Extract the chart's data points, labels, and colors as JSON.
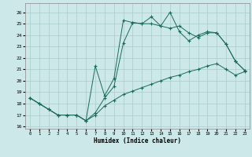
{
  "xlabel": "Humidex (Indice chaleur)",
  "bg_color": "#cce8e8",
  "line_color": "#1a6b5a",
  "grid_color": "#aacccc",
  "xlim": [
    -0.5,
    23.5
  ],
  "ylim": [
    15.8,
    26.8
  ],
  "xticks": [
    0,
    1,
    2,
    3,
    4,
    5,
    6,
    7,
    8,
    9,
    10,
    11,
    12,
    13,
    14,
    15,
    16,
    17,
    18,
    19,
    20,
    21,
    22,
    23
  ],
  "yticks": [
    16,
    17,
    18,
    19,
    20,
    21,
    22,
    23,
    24,
    25,
    26
  ],
  "line1_x": [
    0,
    1,
    2,
    3,
    4,
    5,
    6,
    7,
    8,
    9,
    10,
    11,
    12,
    13,
    14,
    15,
    16,
    17,
    18,
    19,
    20,
    21,
    22,
    23
  ],
  "line1_y": [
    18.5,
    18.0,
    17.5,
    17.0,
    17.0,
    17.0,
    16.5,
    17.0,
    17.8,
    18.3,
    18.8,
    19.1,
    19.4,
    19.7,
    20.0,
    20.3,
    20.5,
    20.8,
    21.0,
    21.3,
    21.5,
    21.0,
    20.5,
    20.8
  ],
  "line2_x": [
    0,
    1,
    2,
    3,
    4,
    5,
    6,
    7,
    8,
    9,
    10,
    11,
    12,
    13,
    14,
    15,
    16,
    17,
    18,
    19,
    20,
    21,
    22,
    23
  ],
  "line2_y": [
    18.5,
    18.0,
    17.5,
    17.0,
    17.0,
    17.0,
    16.5,
    17.2,
    18.5,
    19.5,
    23.3,
    25.1,
    25.0,
    25.0,
    24.8,
    24.6,
    24.8,
    24.2,
    23.8,
    24.2,
    24.2,
    23.2,
    21.7,
    20.9
  ],
  "line3_x": [
    0,
    1,
    2,
    3,
    4,
    5,
    6,
    7,
    8,
    9,
    10,
    11,
    12,
    13,
    14,
    15,
    16,
    17,
    18,
    19,
    20,
    21,
    22,
    23
  ],
  "line3_y": [
    18.5,
    18.0,
    17.5,
    17.0,
    17.0,
    17.0,
    16.5,
    21.3,
    18.7,
    20.2,
    25.3,
    25.1,
    25.0,
    25.6,
    24.8,
    26.0,
    24.3,
    23.5,
    24.0,
    24.3,
    24.2,
    23.2,
    21.7,
    20.9
  ]
}
